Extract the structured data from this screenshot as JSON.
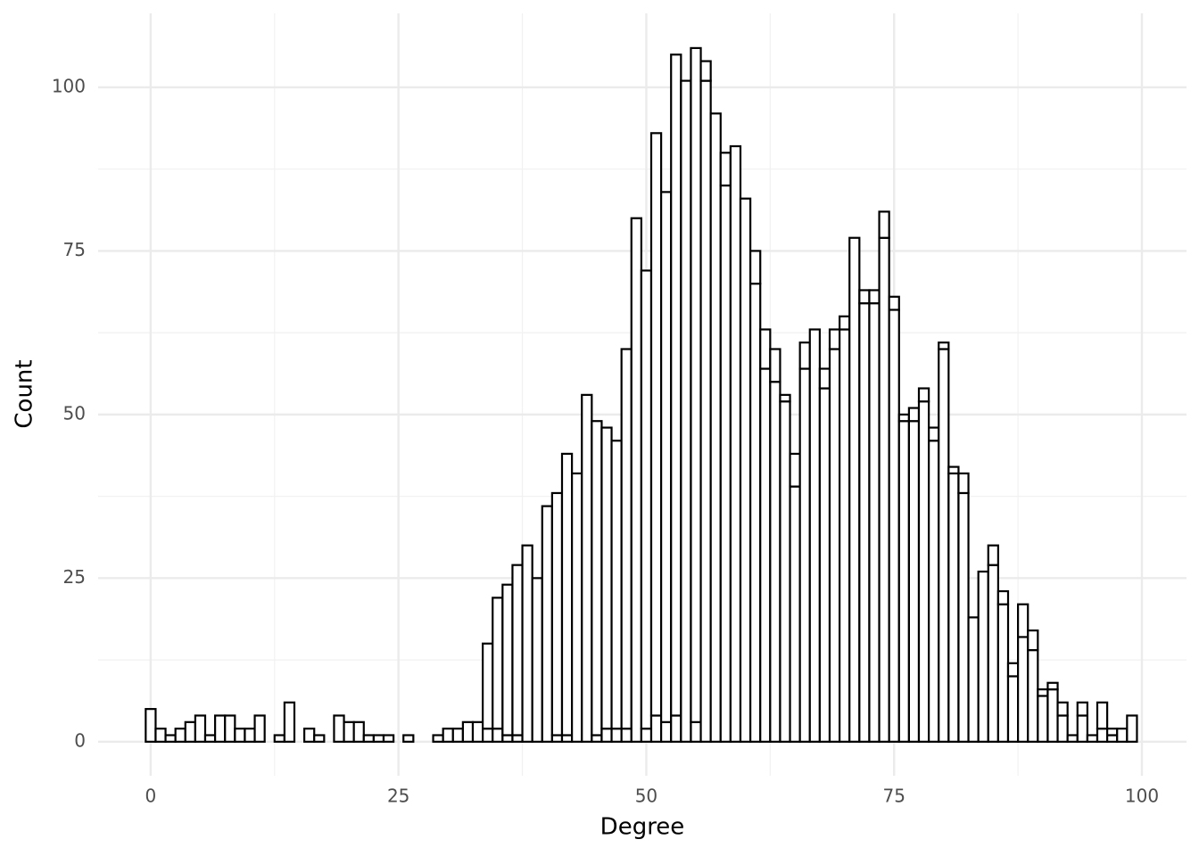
{
  "chart_data": {
    "type": "histogram",
    "x_label": "Degree",
    "y_label": "Count",
    "bins": [
      -0.5,
      0.5,
      1.5,
      2.5,
      3.5,
      4.5,
      5.5,
      6.5,
      7.5,
      8.5,
      9.5,
      10.5,
      11.5,
      12.5,
      13.5,
      14.5,
      15.5,
      16.5,
      17.5,
      18.5,
      19.5,
      20.5,
      21.5,
      22.5,
      23.5,
      24.5,
      25.5,
      26.5,
      27.5,
      28.5,
      29.5,
      30.5,
      31.5,
      32.5,
      33.5,
      34.5,
      35.5,
      36.5,
      37.5,
      38.5,
      39.5,
      40.5,
      41.5,
      42.5,
      43.5,
      44.5,
      45.5,
      46.5,
      47.5,
      48.5,
      49.5,
      50.5,
      51.5,
      52.5,
      53.5,
      54.5,
      55.5,
      56.5,
      57.5,
      58.5,
      59.5,
      60.5,
      61.5,
      62.5,
      63.5,
      64.5,
      65.5,
      66.5,
      67.5,
      68.5,
      69.5,
      70.5,
      71.5,
      72.5,
      73.5,
      74.5,
      75.5,
      76.5,
      77.5,
      78.5,
      79.5,
      80.5,
      81.5,
      82.5,
      83.5,
      84.5,
      85.5,
      86.5,
      87.5,
      88.5,
      89.5,
      90.5,
      91.5,
      92.5,
      93.5,
      94.5,
      95.5,
      96.5,
      97.5,
      98.5,
      99.5
    ],
    "series": [
      {
        "color": "#ffffff",
        "values": [
          5,
          2,
          1,
          2,
          3,
          4,
          1,
          4,
          4,
          2,
          2,
          4,
          0,
          1,
          6,
          0,
          2,
          1,
          0,
          4,
          3,
          3,
          1,
          1,
          1,
          0,
          1,
          0,
          0,
          1,
          2,
          2,
          3,
          3,
          2,
          2,
          1,
          1,
          0,
          0,
          0,
          1,
          1,
          0,
          0,
          1,
          2,
          2,
          2,
          0,
          2,
          4,
          3,
          4,
          0,
          3,
          0,
          0,
          0,
          0,
          0,
          0,
          0,
          0,
          0,
          0,
          0,
          0,
          0,
          0,
          0,
          0,
          0,
          0,
          0,
          0,
          0,
          0,
          0,
          0,
          0,
          0,
          0,
          0,
          0,
          0,
          0,
          0,
          0,
          0,
          0,
          0,
          0,
          0,
          0,
          0,
          0,
          0,
          0,
          0
        ]
      },
      {
        "color": "#ffffff",
        "values": [
          0,
          0,
          0,
          0,
          0,
          0,
          0,
          0,
          0,
          0,
          0,
          0,
          0,
          0,
          0,
          0,
          0,
          0,
          0,
          0,
          0,
          0,
          0,
          0,
          0,
          0,
          0,
          0,
          0,
          0,
          0,
          0,
          0,
          0,
          13,
          20,
          23,
          26,
          30,
          25,
          36,
          37,
          43,
          41,
          53,
          48,
          46,
          44,
          58,
          80,
          70,
          89,
          81,
          101,
          101,
          103,
          101,
          96,
          85,
          91,
          83,
          70,
          57,
          55,
          52,
          39,
          57,
          63,
          54,
          60,
          63,
          77,
          67,
          67,
          77,
          66,
          49,
          49,
          52,
          46,
          60,
          41,
          38,
          19,
          26,
          27,
          21,
          10,
          16,
          14,
          7,
          8,
          4,
          1,
          4,
          1,
          2,
          1,
          2,
          4
        ]
      },
      {
        "color": "#ffffff",
        "values": [
          0,
          0,
          0,
          0,
          0,
          0,
          0,
          0,
          0,
          0,
          0,
          0,
          0,
          0,
          0,
          0,
          0,
          0,
          0,
          0,
          0,
          0,
          0,
          0,
          0,
          0,
          0,
          0,
          0,
          0,
          0,
          0,
          0,
          0,
          0,
          0,
          0,
          0,
          0,
          0,
          0,
          0,
          0,
          0,
          0,
          0,
          0,
          0,
          0,
          0,
          0,
          0,
          0,
          0,
          0,
          0,
          3,
          0,
          5,
          0,
          0,
          5,
          6,
          5,
          1,
          5,
          4,
          0,
          3,
          3,
          2,
          0,
          2,
          2,
          4,
          2,
          1,
          2,
          2,
          2,
          1,
          1,
          3,
          0,
          0,
          3,
          2,
          2,
          5,
          3,
          1,
          1,
          2,
          0,
          2,
          0,
          4,
          1,
          0,
          0
        ]
      }
    ],
    "edgecolor": "#000000",
    "xlim": [
      -5.3,
      104.5
    ],
    "xticks": [
      0,
      25,
      50,
      75,
      100
    ],
    "ylim": [
      -5.2,
      111.3
    ],
    "yticks": [
      0,
      25,
      50,
      75,
      100
    ],
    "grid": true
  }
}
